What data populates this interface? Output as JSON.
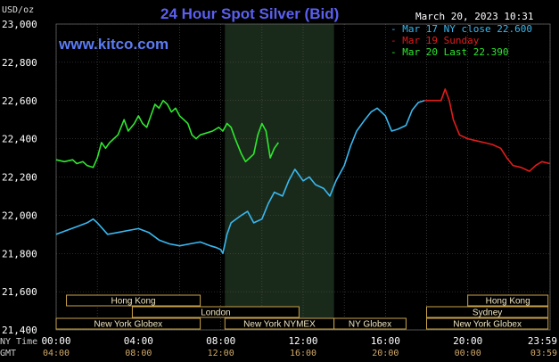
{
  "header": {
    "title": "24 Hour Spot Silver (Bid)",
    "datetime": "March 20, 2023 10:31",
    "unit": "USD/oz",
    "site": "www.kitco.com"
  },
  "legend": [
    {
      "label": "Mar 17 NY close 22.600",
      "color": "#39b8f0"
    },
    {
      "label": "Mar 19 Sunday",
      "color": "#e01c1c"
    },
    {
      "label": "Mar 20 Last 22.390",
      "color": "#2ee82e"
    }
  ],
  "axis_rows": {
    "ny_time": "NY Time",
    "gmt": "GMT"
  },
  "sessions": [
    {
      "label": "Hong Kong",
      "start": 0.5,
      "end": 7.0,
      "row": 0
    },
    {
      "label": "London",
      "start": 3.7,
      "end": 11.8,
      "row": 1
    },
    {
      "label": "New York Globex",
      "start": 0.0,
      "end": 7.0,
      "row": 2
    },
    {
      "label": "New York NYMEX",
      "start": 8.2,
      "end": 13.5,
      "row": 2
    },
    {
      "label": "NY Globex",
      "start": 13.5,
      "end": 17.0,
      "row": 2
    },
    {
      "label": "Hong Kong",
      "start": 20.0,
      "end": 23.9,
      "row": 0
    },
    {
      "label": "Sydney",
      "start": 18.0,
      "end": 23.9,
      "row": 1
    },
    {
      "label": "New York Globex",
      "start": 18.0,
      "end": 23.9,
      "row": 2
    }
  ],
  "chart_data": {
    "type": "line",
    "title": "24 Hour Spot Silver (Bid)",
    "ylabel": "USD/oz",
    "ylim": [
      21.4,
      23.0
    ],
    "xlim": [
      0,
      24
    ],
    "grid": true,
    "legend_position": "top-right",
    "shaded_range": [
      8.2,
      13.5
    ],
    "y_ticks": [
      "23,000",
      "22,800",
      "22,600",
      "22,400",
      "22,200",
      "22,000",
      "21,800",
      "21,600",
      "21,400"
    ],
    "x_ticks": [
      "00:00",
      "04:00",
      "08:00",
      "12:00",
      "16:00",
      "20:00",
      "23:59"
    ],
    "x_ticks_gmt": [
      "04:00",
      "08:00",
      "12:00",
      "16:00",
      "20:00",
      "00:00",
      "03:59"
    ],
    "series": [
      {
        "name": "Mar 17 NY close 22.600",
        "color": "#39b8f0",
        "points": [
          [
            0,
            21.9
          ],
          [
            0.5,
            21.92
          ],
          [
            1,
            21.94
          ],
          [
            1.5,
            21.96
          ],
          [
            1.8,
            21.98
          ],
          [
            2,
            21.96
          ],
          [
            2.5,
            21.9
          ],
          [
            3,
            21.91
          ],
          [
            3.5,
            21.92
          ],
          [
            4,
            21.93
          ],
          [
            4.5,
            21.91
          ],
          [
            5,
            21.87
          ],
          [
            5.5,
            21.85
          ],
          [
            6,
            21.84
          ],
          [
            6.5,
            21.85
          ],
          [
            7,
            21.86
          ],
          [
            7.5,
            21.84
          ],
          [
            7.8,
            21.83
          ],
          [
            8,
            21.82
          ],
          [
            8.1,
            21.8
          ],
          [
            8.3,
            21.9
          ],
          [
            8.5,
            21.96
          ],
          [
            9,
            22.0
          ],
          [
            9.3,
            22.02
          ],
          [
            9.6,
            21.96
          ],
          [
            10,
            21.98
          ],
          [
            10.3,
            22.06
          ],
          [
            10.6,
            22.12
          ],
          [
            11,
            22.1
          ],
          [
            11.3,
            22.18
          ],
          [
            11.6,
            22.24
          ],
          [
            12,
            22.18
          ],
          [
            12.3,
            22.2
          ],
          [
            12.6,
            22.16
          ],
          [
            13,
            22.14
          ],
          [
            13.3,
            22.1
          ],
          [
            13.6,
            22.18
          ],
          [
            14,
            22.26
          ],
          [
            14.3,
            22.36
          ],
          [
            14.6,
            22.44
          ],
          [
            15,
            22.5
          ],
          [
            15.3,
            22.54
          ],
          [
            15.6,
            22.56
          ],
          [
            16,
            22.52
          ],
          [
            16.3,
            22.44
          ],
          [
            16.6,
            22.45
          ],
          [
            17,
            22.47
          ],
          [
            17.3,
            22.55
          ],
          [
            17.6,
            22.59
          ],
          [
            17.9,
            22.6
          ]
        ]
      },
      {
        "name": "Mar 19 Sunday",
        "color": "#e01c1c",
        "points": [
          [
            17.9,
            22.6
          ],
          [
            18.3,
            22.6
          ],
          [
            18.7,
            22.6
          ],
          [
            18.9,
            22.66
          ],
          [
            19.1,
            22.6
          ],
          [
            19.3,
            22.5
          ],
          [
            19.6,
            22.42
          ],
          [
            20,
            22.4
          ],
          [
            20.4,
            22.39
          ],
          [
            20.8,
            22.38
          ],
          [
            21.2,
            22.37
          ],
          [
            21.6,
            22.35
          ],
          [
            21.9,
            22.3
          ],
          [
            22.2,
            22.26
          ],
          [
            22.6,
            22.25
          ],
          [
            23,
            22.23
          ],
          [
            23.3,
            22.26
          ],
          [
            23.6,
            22.28
          ],
          [
            23.99,
            22.27
          ]
        ]
      },
      {
        "name": "Mar 20 Last 22.390",
        "color": "#2ee82e",
        "points": [
          [
            0,
            22.29
          ],
          [
            0.4,
            22.28
          ],
          [
            0.8,
            22.29
          ],
          [
            1,
            22.27
          ],
          [
            1.3,
            22.28
          ],
          [
            1.5,
            22.26
          ],
          [
            1.8,
            22.25
          ],
          [
            2,
            22.3
          ],
          [
            2.2,
            22.38
          ],
          [
            2.4,
            22.35
          ],
          [
            2.6,
            22.38
          ],
          [
            2.8,
            22.4
          ],
          [
            3,
            22.42
          ],
          [
            3.3,
            22.5
          ],
          [
            3.5,
            22.44
          ],
          [
            3.8,
            22.48
          ],
          [
            4,
            22.52
          ],
          [
            4.2,
            22.48
          ],
          [
            4.4,
            22.46
          ],
          [
            4.6,
            22.52
          ],
          [
            4.8,
            22.58
          ],
          [
            5,
            22.56
          ],
          [
            5.2,
            22.6
          ],
          [
            5.4,
            22.58
          ],
          [
            5.6,
            22.54
          ],
          [
            5.8,
            22.56
          ],
          [
            6,
            22.52
          ],
          [
            6.2,
            22.5
          ],
          [
            6.4,
            22.48
          ],
          [
            6.6,
            22.42
          ],
          [
            6.8,
            22.4
          ],
          [
            7,
            22.42
          ],
          [
            7.3,
            22.43
          ],
          [
            7.6,
            22.44
          ],
          [
            7.9,
            22.46
          ],
          [
            8.1,
            22.44
          ],
          [
            8.3,
            22.48
          ],
          [
            8.5,
            22.46
          ],
          [
            8.7,
            22.4
          ],
          [
            9,
            22.32
          ],
          [
            9.2,
            22.28
          ],
          [
            9.4,
            22.3
          ],
          [
            9.6,
            22.32
          ],
          [
            9.8,
            22.42
          ],
          [
            10,
            22.48
          ],
          [
            10.2,
            22.44
          ],
          [
            10.4,
            22.3
          ],
          [
            10.6,
            22.35
          ],
          [
            10.8,
            22.38
          ]
        ]
      }
    ]
  }
}
